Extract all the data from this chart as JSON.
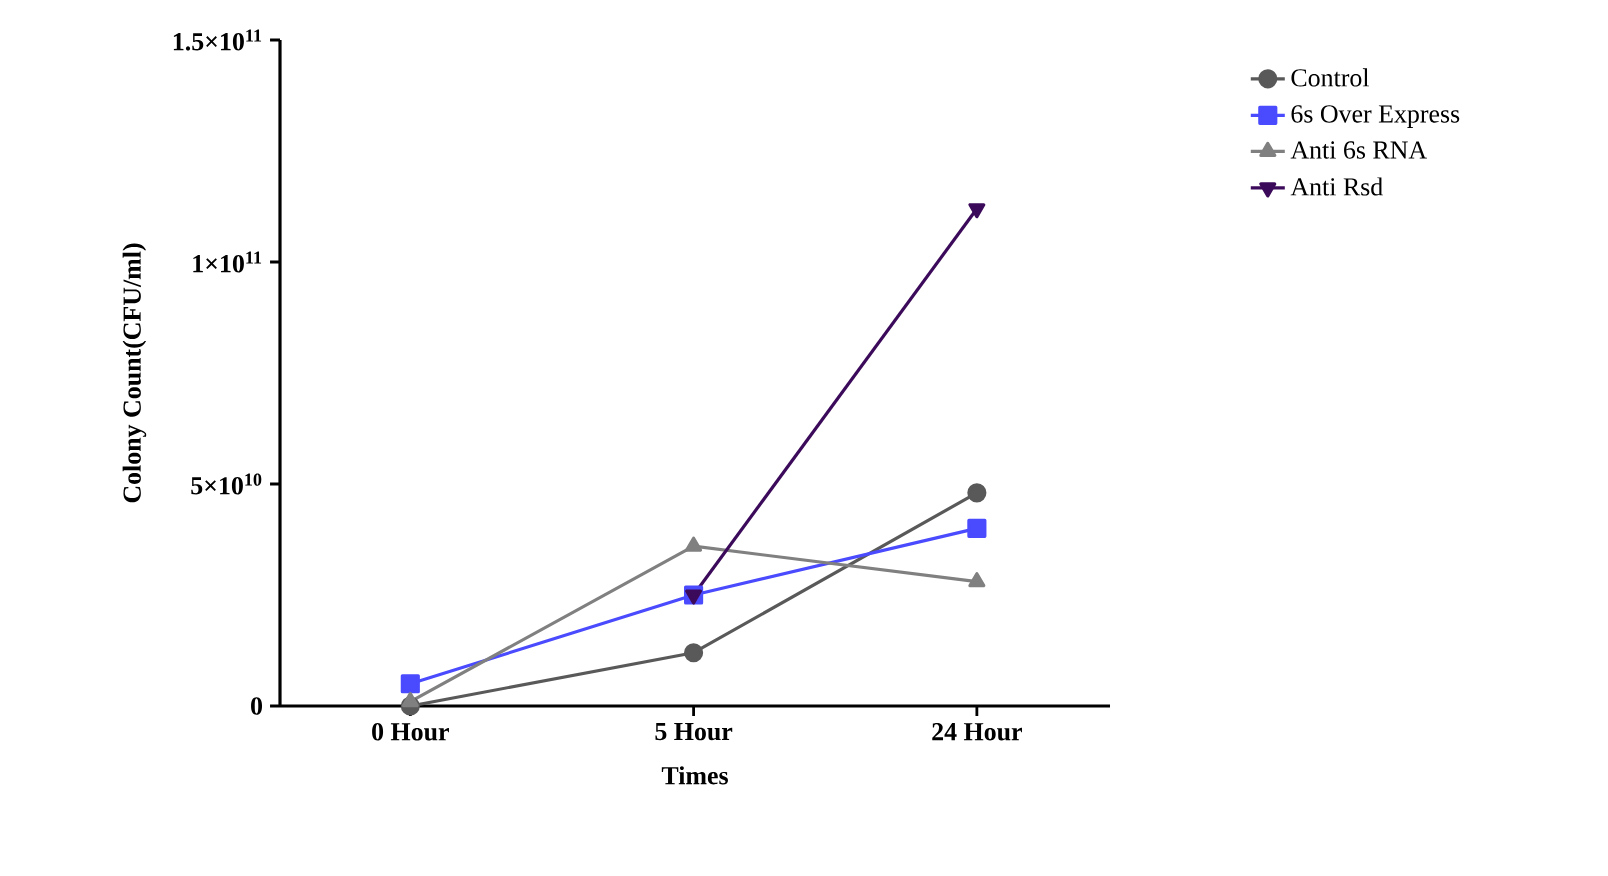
{
  "chart_data": {
    "type": "line",
    "xlabel": "Times",
    "ylabel": "Colony Count(CFU/ml)",
    "categories": [
      "0 Hour",
      "5 Hour",
      "24 Hour"
    ],
    "series": [
      {
        "name": "Control",
        "color": "#595959",
        "marker": "circle",
        "values": [
          0,
          12000000000,
          48000000000
        ]
      },
      {
        "name": "6s Over Express",
        "color": "#4a4aff",
        "marker": "square",
        "values": [
          5000000000,
          25000000000,
          40000000000
        ]
      },
      {
        "name": "Anti 6s RNA",
        "color": "#808080",
        "marker": "triangle",
        "values": [
          1000000000,
          36000000000,
          28000000000
        ]
      },
      {
        "name": "Anti Rsd",
        "color": "#3c0a5a",
        "marker": "triangle down",
        "values": [
          null,
          25000000000,
          112000000000
        ]
      }
    ],
    "ylim": [
      0,
      150000000000
    ],
    "yticks": [
      0,
      {
        "value": 50000000000,
        "label": "5×10$^{10}$"
      },
      {
        "value": 100000000000,
        "label": "1×10$^{11}$"
      },
      {
        "value": 150000000000,
        "label": "1.5×10$^{11}$"
      }
    ],
    "grid": false,
    "legend": "right",
    "line_style": "solid"
  }
}
